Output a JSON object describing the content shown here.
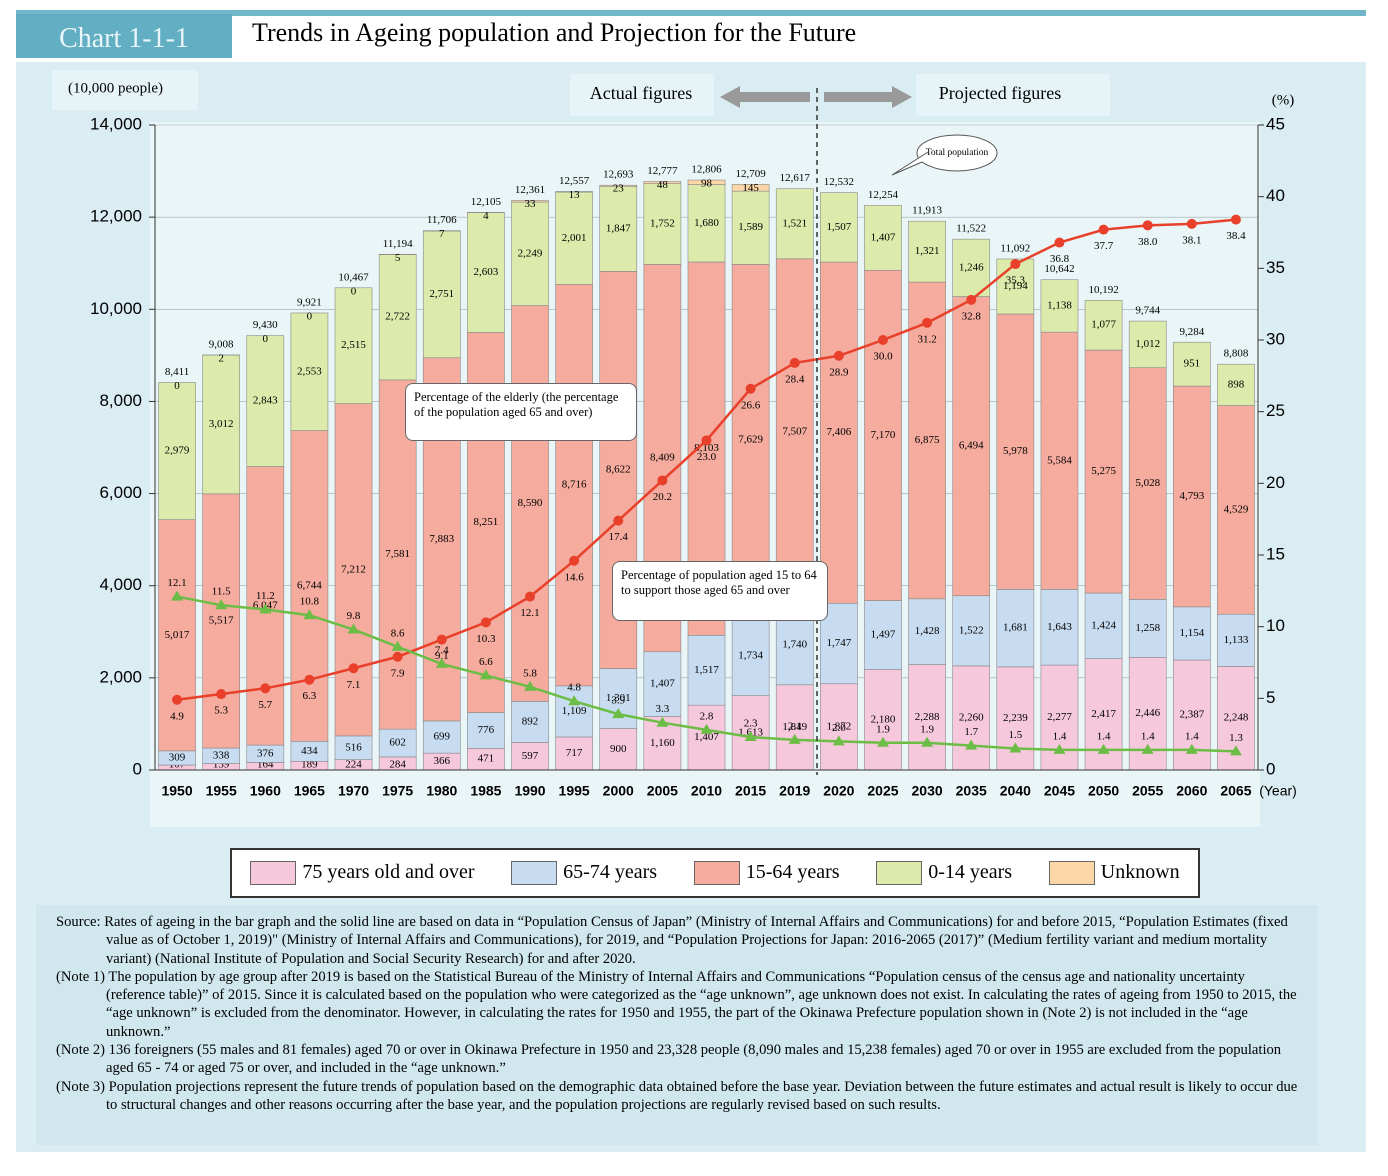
{
  "header": {
    "chart_no": "Chart 1-1-1",
    "title": "Trends in Ageing population and Projection for the Future"
  },
  "chart_data": {
    "type": "stacked-bar-line",
    "y_label": "(10,000 people)",
    "y2_label": "(%)",
    "x_label": "(Year)",
    "period_labels": [
      "Actual figures",
      "Projected figures"
    ],
    "categories": [
      "1950",
      "1955",
      "1960",
      "1965",
      "1970",
      "1975",
      "1980",
      "1985",
      "1990",
      "1995",
      "2000",
      "2005",
      "2010",
      "2015",
      "2019",
      "2020",
      "2025",
      "2030",
      "2035",
      "2040",
      "2045",
      "2050",
      "2055",
      "2060",
      "2065"
    ],
    "ylim": [
      0,
      14000
    ],
    "yticks": [
      0,
      {
        "value": 2000,
        "label": "2,000"
      },
      {
        "value": 4000,
        "label": "4,000"
      },
      {
        "value": 6000,
        "label": "6,000"
      },
      {
        "value": 8000,
        "label": "8,000"
      },
      {
        "value": 10000,
        "label": "10,000"
      },
      {
        "value": 12000,
        "label": "12,000"
      },
      {
        "value": 14000,
        "label": "14,000"
      }
    ],
    "y2lim": [
      0,
      45
    ],
    "y2ticks": [
      0,
      5,
      10,
      15,
      20,
      25,
      30,
      35,
      40,
      45
    ],
    "grid": true,
    "series": [
      {
        "name": "75 years old and over",
        "color": "#f6c8dc",
        "values": [
          107,
          139,
          164,
          189,
          224,
          284,
          366,
          471,
          597,
          717,
          900,
          1160,
          1407,
          1613,
          1849,
          1872,
          2180,
          2288,
          2260,
          2239,
          2277,
          2417,
          2446,
          2387,
          2248
        ],
        "value_labels": [
          "107",
          "139",
          "164",
          "189",
          "224",
          "284",
          "366",
          "471",
          "597",
          "717",
          "900",
          "1,160",
          "1,407",
          "1,613",
          "1,849",
          "1,872",
          "2,180",
          "2,288",
          "2,260",
          "2,239",
          "2,277",
          "2,417",
          "2,446",
          "2,387",
          "2,248"
        ]
      },
      {
        "name": "65-74 years",
        "color": "#c8dcf1",
        "values": [
          309,
          338,
          376,
          434,
          516,
          602,
          699,
          776,
          892,
          1109,
          1301,
          1407,
          1517,
          1734,
          1740,
          1747,
          1497,
          1428,
          1522,
          1681,
          1643,
          1424,
          1258,
          1154,
          1133
        ],
        "value_labels": [
          "309",
          "338",
          "376",
          "434",
          "516",
          "602",
          "699",
          "776",
          "892",
          "1,109",
          "1,301",
          "1,407",
          "1,517",
          "1,734",
          "1,740",
          "1,747",
          "1,497",
          "1,428",
          "1,522",
          "1,681",
          "1,643",
          "1,424",
          "1,258",
          "1,154",
          "1,133"
        ]
      },
      {
        "name": "15-64 years",
        "color": "#f5ab9e",
        "values": [
          5017,
          5517,
          6047,
          6744,
          7212,
          7581,
          7883,
          8251,
          8590,
          8716,
          8622,
          8409,
          8103,
          7629,
          7507,
          7406,
          7170,
          6875,
          6494,
          5978,
          5584,
          5275,
          5028,
          4793,
          4529
        ],
        "value_labels": [
          "5,017",
          "5,517",
          "6,047",
          "6,744",
          "7,212",
          "7,581",
          "7,883",
          "8,251",
          "8,590",
          "8,716",
          "8,622",
          "8,409",
          "8,103",
          "7,629",
          "7,507",
          "7,406",
          "7,170",
          "6,875",
          "6,494",
          "5,978",
          "5,584",
          "5,275",
          "5,028",
          "4,793",
          "4,529"
        ]
      },
      {
        "name": "0-14 years",
        "color": "#dcebab",
        "values": [
          2979,
          3012,
          2843,
          2553,
          2515,
          2722,
          2751,
          2603,
          2249,
          2001,
          1847,
          1752,
          1680,
          1589,
          1521,
          1507,
          1407,
          1321,
          1246,
          1194,
          1138,
          1077,
          1012,
          951,
          898
        ],
        "value_labels": [
          "2,979",
          "3,012",
          "2,843",
          "2,553",
          "2,515",
          "2,722",
          "2,751",
          "2,603",
          "2,249",
          "2,001",
          "1,847",
          "1,752",
          "1,680",
          "1,589",
          "1,521",
          "1,507",
          "1,407",
          "1,321",
          "1,246",
          "1,194",
          "1,138",
          "1,077",
          "1,012",
          "951",
          "898"
        ]
      },
      {
        "name": "Unknown",
        "color": "#fbd6a6",
        "values": [
          0,
          2,
          0,
          0,
          0,
          5,
          7,
          4,
          33,
          13,
          23,
          48,
          98,
          145,
          null,
          null,
          null,
          null,
          null,
          null,
          null,
          null,
          null,
          null,
          null
        ]
      },
      {
        "name": "Percentage of the elderly (the percentage of the population aged 65 and over)",
        "color": "#e8402a",
        "axis": "y2",
        "values": [
          4.9,
          5.3,
          5.7,
          6.3,
          7.1,
          7.9,
          9.1,
          10.3,
          12.1,
          14.6,
          17.4,
          20.2,
          23.0,
          26.6,
          28.4,
          28.9,
          30.0,
          31.2,
          32.8,
          35.3,
          36.8,
          37.7,
          38.0,
          38.1,
          38.4
        ],
        "value_labels": [
          "4.9",
          "5.3",
          "5.7",
          "6.3",
          "7.1",
          "7.9",
          "9.1",
          "10.3",
          "12.1",
          "14.6",
          "17.4",
          "20.2",
          "23.0",
          "26.6",
          "28.4",
          "28.9",
          "30.0",
          "31.2",
          "32.8",
          "35.3",
          "36.8",
          "37.7",
          "38.0",
          "38.1",
          "38.4"
        ]
      },
      {
        "name": "Percentage of population aged 15 to 64 to support those aged 65 and over",
        "color": "#6cbd45",
        "axis": "y2",
        "values": [
          12.1,
          11.5,
          11.2,
          10.8,
          9.8,
          8.6,
          7.4,
          6.6,
          5.8,
          4.8,
          3.9,
          3.3,
          2.8,
          2.3,
          2.1,
          2.0,
          1.9,
          1.9,
          1.7,
          1.5,
          1.4,
          1.4,
          1.4,
          1.4,
          1.3
        ],
        "value_labels": [
          "12.1",
          "11.5",
          "11.2",
          "10.8",
          "9.8",
          "8.6",
          "7.4",
          "6.6",
          "5.8",
          "4.8",
          "3.9",
          "3.3",
          "2.8",
          "2.3",
          "2.1",
          "2.0",
          "1.9",
          "1.9",
          "1.7",
          "1.5",
          "1.4",
          "1.4",
          "1.4",
          "1.4",
          "1.3"
        ]
      }
    ],
    "totals": {
      "name": "Total population",
      "values": [
        8411,
        9008,
        9430,
        9921,
        10467,
        11194,
        11706,
        12105,
        12361,
        12557,
        12693,
        12777,
        12806,
        12709,
        12617,
        12532,
        12254,
        11913,
        11522,
        11092,
        10642,
        10192,
        9744,
        9284,
        8808
      ],
      "value_labels": [
        "8,411",
        "9,008",
        "9,430",
        "9,921",
        "10,467",
        "11,194",
        "11,706",
        "12,105",
        "12,361",
        "12,557",
        "12,693",
        "12,777",
        "12,806",
        "12,709",
        "12,617",
        "12,532",
        "12,254",
        "11,913",
        "11,522",
        "11,092",
        "10,642",
        "10,192",
        "9,744",
        "9,284",
        "8,808"
      ]
    }
  },
  "notes": [
    "Source: Rates of ageing in the bar graph and the solid line are based on data in “Population Census of Japan” (Ministry of Internal Affairs and Communications) for and before 2015, “Population Estimates (fixed value as of October 1, 2019)\" (Ministry of Internal Affairs and Communications), for 2019, and “Population Projections for Japan: 2016-2065 (2017)” (Medium fertility variant and medium mortality variant) (National Institute of Population and Social Security Research) for and after 2020.",
    "(Note 1) The population by age group after 2019 is based on the Statistical Bureau of the Ministry of Internal Affairs and Communications “Population census of the census age and nationality uncertainty (reference table)” of 2015. Since it is calculated based on the population who were categorized as the “age unknown”, age unknown does not exist. In calculating the rates of ageing from 1950 to 2015, the “age unknown” is excluded from the denominator. However, in calculating the rates for 1950 and 1955, the part of the Okinawa Prefecture population shown in (Note 2) is not included in the “age unknown.”",
    "(Note 2) 136 foreigners (55 males and 81 females) aged 70 or over in Okinawa Prefecture in 1950 and 23,328 people (8,090 males and 15,238 females) aged 70 or over in 1955 are excluded from the population aged 65 - 74 or aged 75 or over, and included in the “age unknown.”",
    "(Note 3) Population projections represent the future trends of population based on the demographic data obtained before the base year. Deviation between the future estimates and actual result is likely to occur due to structural changes and other reasons occurring after the base year, and the population projections are regularly revised based on such results."
  ]
}
